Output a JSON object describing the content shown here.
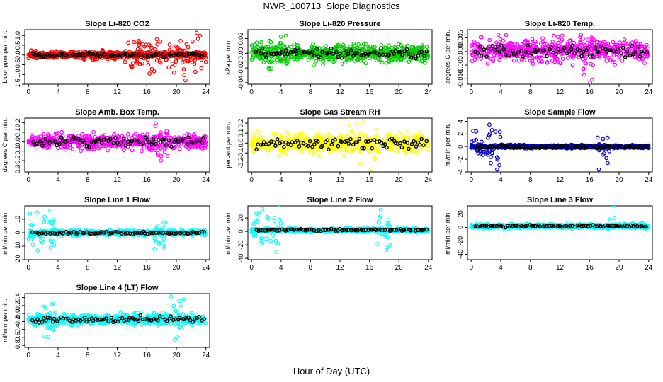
{
  "page": {
    "title": "NWR_100713  Slope Diagnostics",
    "x_axis_title": "Hour of Day (UTC)"
  },
  "chart_data": [
    {
      "type": "scatter",
      "title": "Slope Li-820 CO2",
      "ylabel": "Licor ppm per min.",
      "ylim": [
        -1.5,
        1.3
      ],
      "yticks": [
        "-1.5",
        "-1.0",
        "-0.5",
        "0.0",
        "0.5",
        "1.0"
      ],
      "yticks_values": [
        -1.5,
        -1.0,
        -0.5,
        0.0,
        0.5,
        1.0
      ],
      "xlim": [
        -0.5,
        24.5
      ],
      "xticks": [
        0,
        4,
        8,
        12,
        16,
        20,
        24
      ],
      "xticks_labels": [
        "0",
        "4",
        "8",
        "12",
        "16",
        "20",
        "24"
      ],
      "color": "#ff0000",
      "center": 0.0,
      "spread": 0.18,
      "outlier_spread": 0.9,
      "outlier_hours": [
        [
          13,
          24
        ]
      ],
      "point_count": 620,
      "mean_count": 80
    },
    {
      "type": "scatter",
      "title": "Slope Li-820 Pressure",
      "ylabel": "kPa per min.",
      "ylim": [
        -0.042,
        0.032
      ],
      "yticks": [
        "-0.04",
        "-0.02",
        "0.00",
        "0.02"
      ],
      "yticks_values": [
        -0.04,
        -0.02,
        0.0,
        0.02
      ],
      "xlim": [
        -0.5,
        24.5
      ],
      "xticks": [
        0,
        4,
        8,
        12,
        16,
        20,
        24
      ],
      "xticks_labels": [
        "0",
        "4",
        "8",
        "12",
        "16",
        "20",
        "24"
      ],
      "color": "#00cc00",
      "center": 0.0,
      "spread": 0.011,
      "outlier_spread": 0.03,
      "outlier_hours": [
        [
          2,
          5
        ]
      ],
      "point_count": 620,
      "mean_count": 80
    },
    {
      "type": "scatter",
      "title": "Slope Li-820 Temp.",
      "ylabel": "degrees C per min.",
      "ylim": [
        -0.012,
        0.008
      ],
      "yticks": [
        "-0.010",
        "-0.005",
        "0.000",
        "0.005"
      ],
      "yticks_values": [
        -0.01,
        -0.005,
        0.0,
        0.005
      ],
      "xlim": [
        -0.5,
        24.5
      ],
      "xticks": [
        0,
        4,
        8,
        12,
        16,
        20,
        24
      ],
      "xticks_labels": [
        "0",
        "4",
        "8",
        "12",
        "16",
        "20",
        "24"
      ],
      "color": "#ff00ff",
      "center": 0.0005,
      "spread": 0.004,
      "outlier_spread": 0.01,
      "outlier_hours": [
        [
          15,
          17
        ]
      ],
      "point_count": 560,
      "mean_count": 80
    },
    {
      "type": "scatter",
      "title": "Slope Amb. Box Temp.",
      "ylabel": "degrees C per min.",
      "ylim": [
        -0.32,
        0.25
      ],
      "yticks": [
        "-0.3",
        "-0.2",
        "-0.1",
        "0.0",
        "0.1",
        "0.2"
      ],
      "yticks_values": [
        -0.3,
        -0.2,
        -0.1,
        0.0,
        0.1,
        0.2
      ],
      "xlim": [
        -0.5,
        24.5
      ],
      "xticks": [
        0,
        4,
        8,
        12,
        16,
        20,
        24
      ],
      "xticks_labels": [
        "0",
        "4",
        "8",
        "12",
        "16",
        "20",
        "24"
      ],
      "color": "#ff00ff",
      "center": 0.0,
      "spread": 0.08,
      "outlier_spread": 0.25,
      "outlier_hours": [
        [
          17,
          19
        ]
      ],
      "point_count": 560,
      "mean_count": 80
    },
    {
      "type": "scatter",
      "title": "Slope Gas Stream RH",
      "ylabel": "percent per min.",
      "ylim": [
        -0.29,
        0.25
      ],
      "yticks": [
        "-0.2",
        "-0.1",
        "0.0",
        "0.1",
        "0.2"
      ],
      "yticks_values": [
        -0.2,
        -0.1,
        0.0,
        0.1,
        0.2
      ],
      "xlim": [
        -0.5,
        24.5
      ],
      "xticks": [
        0,
        4,
        8,
        12,
        16,
        20,
        24
      ],
      "xticks_labels": [
        "0",
        "4",
        "8",
        "12",
        "16",
        "20",
        "24"
      ],
      "color": "#ffff00",
      "center": 0.0,
      "spread": 0.09,
      "outlier_spread": 0.22,
      "outlier_hours": [
        [
          13,
          17
        ]
      ],
      "point_count": 560,
      "mean_count": 80
    },
    {
      "type": "scatter",
      "title": "Slope Sample Flow",
      "ylabel": "ml/min per min.",
      "ylim": [
        -4,
        4.5
      ],
      "yticks": [
        "-4",
        "-2",
        "0",
        "2",
        "4"
      ],
      "yticks_values": [
        -4,
        -2,
        0,
        2,
        4
      ],
      "xlim": [
        -0.5,
        24.5
      ],
      "xticks": [
        0,
        4,
        8,
        12,
        16,
        20,
        24
      ],
      "xticks_labels": [
        "0",
        "4",
        "8",
        "12",
        "16",
        "20",
        "24"
      ],
      "color": "#0000cc",
      "center": 0.0,
      "spread": 0.25,
      "outlier_spread": 3.0,
      "outlier_hours": [
        [
          0,
          4
        ],
        [
          17,
          19
        ]
      ],
      "point_count": 620,
      "mean_count": 80
    },
    {
      "type": "scatter",
      "title": "Slope Line 1 Flow",
      "ylabel": "ml/min per min.",
      "ylim": [
        -20,
        20
      ],
      "yticks": [
        "-20",
        "-10",
        "0",
        "10"
      ],
      "yticks_values": [
        -20,
        -10,
        0,
        10
      ],
      "xlim": [
        -0.5,
        24.5
      ],
      "xticks": [
        0,
        4,
        8,
        12,
        16,
        20,
        24
      ],
      "xticks_labels": [
        "0",
        "4",
        "8",
        "12",
        "16",
        "20",
        "24"
      ],
      "color": "#00ffff",
      "center": 0.0,
      "spread": 1.8,
      "outlier_spread": 18,
      "outlier_hours": [
        [
          0,
          4
        ],
        [
          17,
          19
        ]
      ],
      "point_count": 620,
      "mean_count": 80
    },
    {
      "type": "scatter",
      "title": "Slope Line 2 Flow",
      "ylabel": "ml/min per min.",
      "ylim": [
        -42,
        38
      ],
      "yticks": [
        "-40",
        "-20",
        "0",
        "20"
      ],
      "yticks_values": [
        -40,
        -20,
        0,
        20
      ],
      "xlim": [
        -0.5,
        24.5
      ],
      "xticks": [
        0,
        4,
        8,
        12,
        16,
        20,
        24
      ],
      "xticks_labels": [
        "0",
        "4",
        "8",
        "12",
        "16",
        "20",
        "24"
      ],
      "color": "#00ffff",
      "center": 2.0,
      "spread": 2.5,
      "outlier_spread": 30,
      "outlier_hours": [
        [
          0,
          4
        ],
        [
          17,
          19
        ]
      ],
      "point_count": 620,
      "mean_count": 80
    },
    {
      "type": "scatter",
      "title": "Slope Line 3 Flow",
      "ylabel": "ml/min per min.",
      "ylim": [
        -48,
        32
      ],
      "yticks": [
        "-40",
        "-20",
        "0",
        "20"
      ],
      "yticks_values": [
        -40,
        -20,
        0,
        20
      ],
      "xlim": [
        -0.5,
        24.5
      ],
      "xticks": [
        0,
        4,
        8,
        12,
        16,
        20,
        24
      ],
      "xticks_labels": [
        "0",
        "4",
        "8",
        "12",
        "16",
        "20",
        "24"
      ],
      "color": "#00ffff",
      "center": 2.0,
      "spread": 3.0,
      "outlier_spread": 40,
      "outlier_hours": [
        [
          18.5,
          19.5
        ]
      ],
      "point_count": 620,
      "mean_count": 80
    },
    {
      "type": "scatter",
      "title": "Slope Line 4 (LT) Flow",
      "ylabel": "ml/min per min.",
      "ylim": [
        -0.85,
        0.5
      ],
      "yticks": [
        "-0.8",
        "-0.6",
        "-0.4",
        "-0.2",
        "0.0",
        "0.2",
        "0.4"
      ],
      "yticks_values": [
        -0.8,
        -0.6,
        -0.4,
        -0.2,
        0.0,
        0.2,
        0.4
      ],
      "xlim": [
        -0.5,
        24.5
      ],
      "xticks": [
        0,
        4,
        8,
        12,
        16,
        20,
        24
      ],
      "xticks_labels": [
        "0",
        "4",
        "8",
        "12",
        "16",
        "20",
        "24"
      ],
      "color": "#00ffff",
      "center": -0.15,
      "spread": 0.13,
      "outlier_spread": 0.55,
      "outlier_hours": [
        [
          2,
          4
        ],
        [
          19,
          21
        ]
      ],
      "point_count": 620,
      "mean_count": 80
    }
  ]
}
